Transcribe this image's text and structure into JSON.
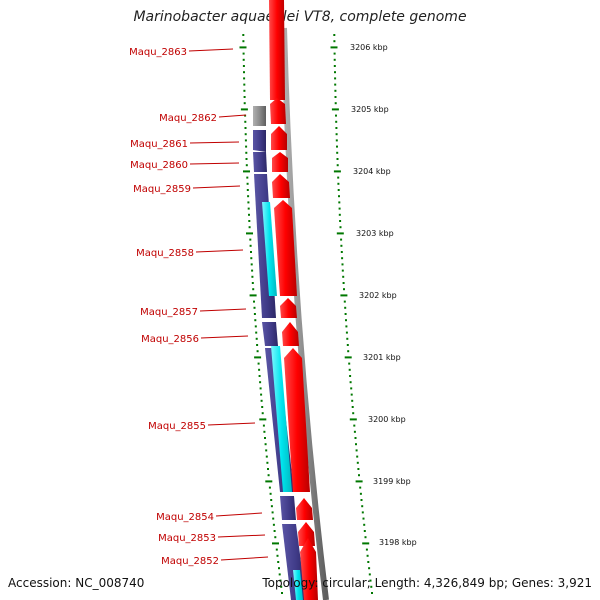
{
  "title": "Marinobacter aquaeolei VT8, complete genome",
  "footer": {
    "accession": "Accession: NC_008740",
    "topology": "Topology: circular;",
    "length": "Length: 4,326,849 bp;",
    "genes": "Genes: 3,921"
  },
  "scale": {
    "unit": "kbp",
    "ticks": [
      "3206 kbp",
      "3205 kbp",
      "3204 kbp",
      "3203 kbp",
      "3202 kbp",
      "3201 kbp",
      "3200 kbp",
      "3199 kbp",
      "3198 kbp"
    ]
  },
  "colors": {
    "forward_cds": "#ff0000",
    "reverse_cds": "#3f3a87",
    "rna": "#00e5ee",
    "backbone": "#8c8c8c",
    "tick": "#007700",
    "label": "#c00000"
  },
  "genes": [
    {
      "label": "Maqu_2863"
    },
    {
      "label": "Maqu_2862"
    },
    {
      "label": "Maqu_2861"
    },
    {
      "label": "Maqu_2860"
    },
    {
      "label": "Maqu_2859"
    },
    {
      "label": "Maqu_2858"
    },
    {
      "label": "Maqu_2857"
    },
    {
      "label": "Maqu_2856"
    },
    {
      "label": "Maqu_2855"
    },
    {
      "label": "Maqu_2854"
    },
    {
      "label": "Maqu_2853"
    },
    {
      "label": "Maqu_2852"
    }
  ]
}
